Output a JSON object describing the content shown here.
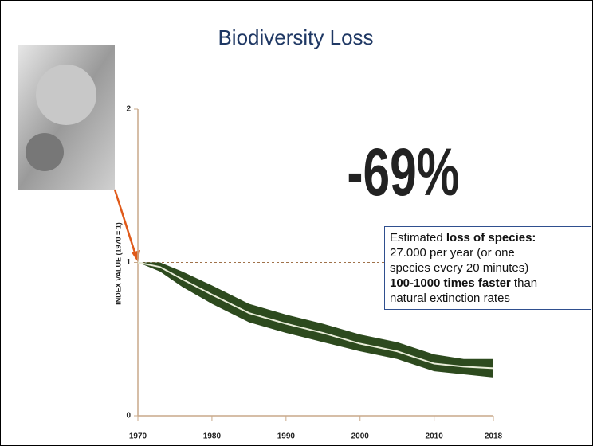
{
  "chart_data": {
    "type": "band-line",
    "title": "Biodiversity Loss",
    "headline": "-69%",
    "y_label": "INDEX VALUE (1970 = 1)",
    "note": [
      "Estimated ",
      "loss of species:",
      "27.000 per year (or one",
      "species every 20 minutes)",
      "100-1000 times faster",
      " than",
      "natural extinction rates"
    ],
    "x": [
      1970,
      1973,
      1976,
      1980,
      1985,
      1990,
      1995,
      2000,
      2005,
      2010,
      2014,
      2018
    ],
    "series": [
      {
        "color": "#2d4a1e",
        "line_color": "#e8ecd8",
        "values": [
          1,
          0.97,
          0.89,
          0.79,
          0.67,
          0.6,
          0.54,
          0.47,
          0.42,
          0.34,
          0.32,
          0.31
        ],
        "upper": [
          1,
          1.0,
          0.94,
          0.85,
          0.73,
          0.66,
          0.6,
          0.53,
          0.48,
          0.4,
          0.37,
          0.37
        ],
        "lower": [
          1,
          0.94,
          0.84,
          0.73,
          0.61,
          0.54,
          0.48,
          0.42,
          0.37,
          0.29,
          0.27,
          0.25
        ]
      }
    ],
    "reference_line": 1,
    "xlim": [
      1970,
      2018
    ],
    "xticks": [
      1970,
      1980,
      1990,
      2000,
      2010,
      2018
    ],
    "ylim": [
      0,
      2
    ],
    "yticks": [
      0,
      1,
      2
    ],
    "axis_color": "#c9a98a"
  }
}
